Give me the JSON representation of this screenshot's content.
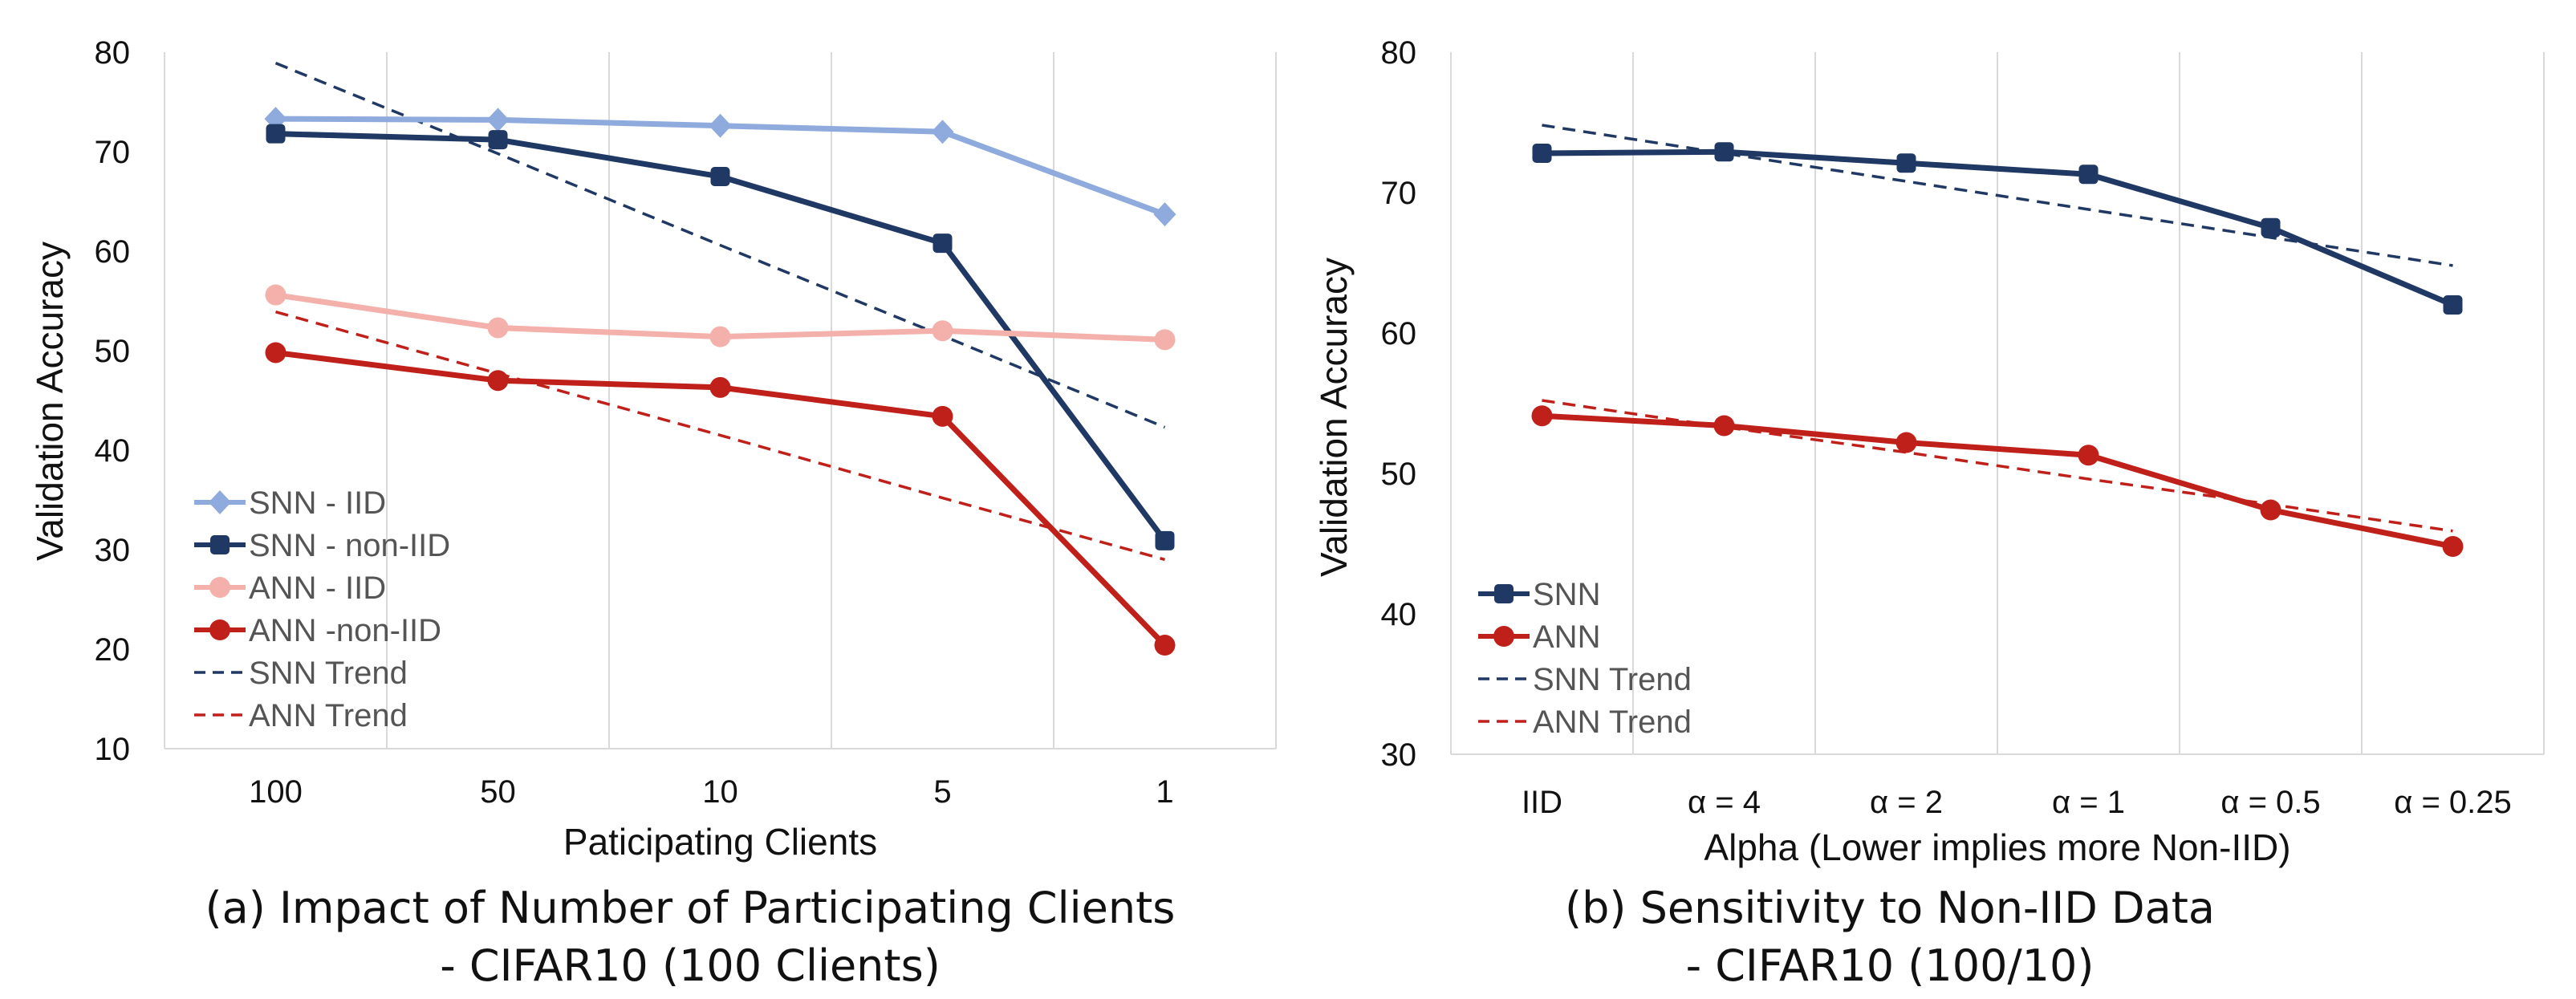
{
  "chart_data": [
    {
      "type": "line",
      "title": "(a) Impact of Number of Participating Clients",
      "subtitle": "- CIFAR10 (100 Clients)",
      "xlabel": "Paticipating Clients",
      "ylabel": "Validation Accuracy",
      "categories": [
        "100",
        "50",
        "10",
        "5",
        "1"
      ],
      "ylim": [
        10,
        80
      ],
      "yticks": [
        10,
        20,
        30,
        40,
        50,
        60,
        70,
        80
      ],
      "grid": "vertical",
      "legend": "bottom-left",
      "series": [
        {
          "name": "SNN - IID",
          "values": [
            73.3,
            73.2,
            72.6,
            72.0,
            63.7
          ],
          "color": "#8faadc",
          "style": "solid",
          "marker": "diamond"
        },
        {
          "name": "SNN - non-IID",
          "values": [
            71.8,
            71.2,
            67.5,
            60.8,
            30.9
          ],
          "color": "#203864",
          "style": "solid",
          "marker": "square"
        },
        {
          "name": "ANN - IID",
          "values": [
            55.6,
            52.3,
            51.4,
            52.0,
            51.1
          ],
          "color": "#f4b0aa",
          "style": "solid",
          "marker": "circle"
        },
        {
          "name": "ANN -non-IID",
          "values": [
            49.8,
            47.0,
            46.3,
            43.4,
            20.4
          ],
          "color": "#c0201a",
          "style": "solid",
          "marker": "circle"
        },
        {
          "name": "SNN Trend",
          "values": [
            78.9,
            69.8,
            60.6,
            51.5,
            42.3
          ],
          "color": "#203864",
          "style": "dashed",
          "marker": "none"
        },
        {
          "name": "ANN Trend",
          "values": [
            53.9,
            47.7,
            41.5,
            35.2,
            29.0
          ],
          "color": "#c0201a",
          "style": "dashed",
          "marker": "none"
        }
      ]
    },
    {
      "type": "line",
      "title": "(b) Sensitivity to Non-IID Data",
      "subtitle": "- CIFAR10 (100/10)",
      "xlabel": "Alpha (Lower implies more Non-IID)",
      "ylabel": "Validation Accuracy",
      "categories": [
        "IID",
        "α = 4",
        "α = 2",
        "α = 1",
        "α = 0.5",
        "α = 0.25"
      ],
      "ylim": [
        30,
        80
      ],
      "yticks": [
        30,
        40,
        50,
        60,
        70,
        80
      ],
      "grid": "vertical",
      "legend": "bottom-left",
      "series": [
        {
          "name": "SNN",
          "values": [
            72.8,
            72.9,
            72.1,
            71.3,
            67.5,
            62.0
          ],
          "color": "#203864",
          "style": "solid",
          "marker": "square"
        },
        {
          "name": "ANN",
          "values": [
            54.1,
            53.4,
            52.2,
            51.3,
            47.4,
            44.8
          ],
          "color": "#c0201a",
          "style": "solid",
          "marker": "circle"
        },
        {
          "name": "SNN Trend",
          "values": [
            74.8,
            72.8,
            70.8,
            68.8,
            66.8,
            64.8
          ],
          "color": "#203864",
          "style": "dashed",
          "marker": "none"
        },
        {
          "name": "ANN Trend",
          "values": [
            55.2,
            53.3,
            51.5,
            49.6,
            47.8,
            45.9
          ],
          "color": "#c0201a",
          "style": "dashed",
          "marker": "none"
        }
      ]
    }
  ]
}
